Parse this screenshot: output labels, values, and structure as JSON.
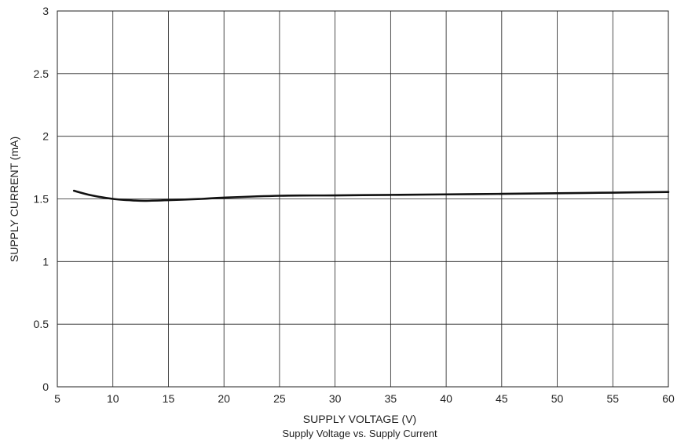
{
  "chart_data": {
    "type": "line",
    "title": "",
    "caption": "Supply Voltage vs. Supply Current",
    "xlabel": "SUPPLY VOLTAGE (V)",
    "ylabel": "SUPPLY CURRENT (mA)",
    "xlim": [
      5,
      60
    ],
    "ylim": [
      0,
      3
    ],
    "xticks": [
      "5",
      "10",
      "15",
      "20",
      "25",
      "30",
      "35",
      "40",
      "45",
      "50",
      "55",
      "60"
    ],
    "yticks": [
      "0",
      "0.5",
      "1",
      "1.5",
      "2",
      "2.5",
      "3"
    ],
    "grid": true,
    "series": [
      {
        "x": [
          6.5,
          8,
          10,
          12,
          13,
          15,
          18,
          20,
          25,
          30,
          35,
          40,
          45,
          50,
          55,
          60
        ],
        "y": [
          1.565,
          1.53,
          1.5,
          1.487,
          1.485,
          1.49,
          1.5,
          1.51,
          1.525,
          1.528,
          1.532,
          1.536,
          1.54,
          1.545,
          1.55,
          1.555
        ],
        "color": "#111111"
      }
    ]
  }
}
